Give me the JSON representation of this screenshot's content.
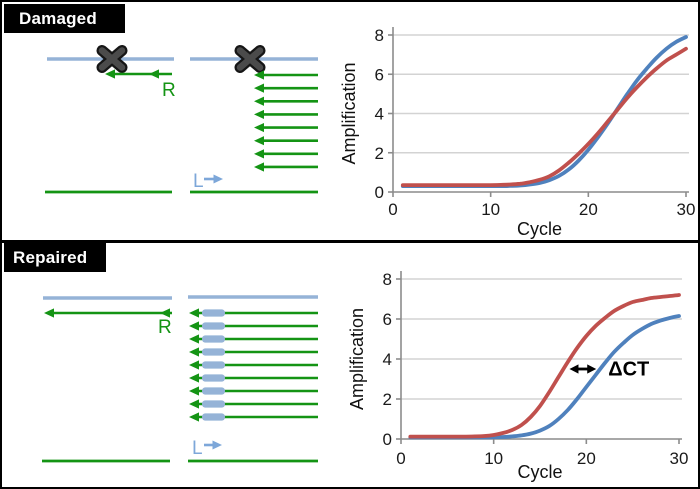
{
  "colors": {
    "series_red": "#C0504D",
    "series_blue": "#4F81BD",
    "primer_green": "#149414",
    "template_blue": "#95B3D7",
    "label_blue": "#7DA7D9",
    "damage_gray_outer": "#161616",
    "damage_gray_inner": "#4B4B4B",
    "axis_gray": "#8C8C8C",
    "grid_gray": "#D3D3D3",
    "text_dark": "#1A1A1A",
    "annotation_black": "#000000",
    "panel_label_bg": "#000000",
    "panel_label_fg": "#FFFFFF"
  },
  "panels": [
    {
      "title": "Damaged",
      "reverse_primer_label": "R",
      "forward_primer_label": "L",
      "left_diagram": {
        "damage_mark": true,
        "extension_products": 1,
        "repair_patches": false
      },
      "right_diagram": {
        "damage_mark": true,
        "extension_products": 8,
        "repair_patches": false
      }
    },
    {
      "title": "Repaired",
      "reverse_primer_label": "R",
      "forward_primer_label": "L",
      "left_diagram": {
        "damage_mark": false,
        "extension_products": 1,
        "repair_patches": false
      },
      "right_diagram": {
        "damage_mark": false,
        "extension_products": 9,
        "repair_patches": true
      }
    }
  ],
  "chart_data": [
    {
      "type": "line",
      "panel": "Damaged",
      "xlabel": "Cycle",
      "ylabel": "Amplification",
      "x_ticks": [
        0,
        10,
        20,
        30
      ],
      "y_ticks": [
        0,
        2,
        4,
        6,
        8
      ],
      "xlim": [
        0,
        30
      ],
      "ylim": [
        0,
        8
      ],
      "grid": true,
      "legend": "none",
      "x": [
        1,
        2,
        3,
        4,
        5,
        6,
        7,
        8,
        9,
        10,
        11,
        12,
        13,
        14,
        15,
        16,
        17,
        18,
        19,
        20,
        21,
        22,
        23,
        24,
        25,
        26,
        27,
        28,
        29,
        30
      ],
      "series": [
        {
          "name": "blue",
          "color": "#4F81BD",
          "values": [
            0.3,
            0.3,
            0.3,
            0.3,
            0.3,
            0.3,
            0.3,
            0.3,
            0.3,
            0.3,
            0.3,
            0.31,
            0.33,
            0.38,
            0.46,
            0.6,
            0.82,
            1.15,
            1.6,
            2.15,
            2.8,
            3.5,
            4.25,
            5.0,
            5.7,
            6.3,
            6.85,
            7.3,
            7.65,
            7.9
          ]
        },
        {
          "name": "red",
          "color": "#C0504D",
          "values": [
            0.35,
            0.35,
            0.35,
            0.35,
            0.35,
            0.35,
            0.35,
            0.35,
            0.35,
            0.35,
            0.36,
            0.38,
            0.42,
            0.5,
            0.62,
            0.8,
            1.1,
            1.5,
            1.95,
            2.45,
            3.0,
            3.6,
            4.2,
            4.8,
            5.35,
            5.85,
            6.3,
            6.7,
            7.0,
            7.3
          ]
        }
      ]
    },
    {
      "type": "line",
      "panel": "Repaired",
      "xlabel": "Cycle",
      "ylabel": "Amplification",
      "x_ticks": [
        0,
        10,
        20,
        30
      ],
      "y_ticks": [
        0,
        2,
        4,
        6,
        8
      ],
      "xlim": [
        0,
        30
      ],
      "ylim": [
        0,
        8
      ],
      "grid": true,
      "legend": "none",
      "x": [
        1,
        2,
        3,
        4,
        5,
        6,
        7,
        8,
        9,
        10,
        11,
        12,
        13,
        14,
        15,
        16,
        17,
        18,
        19,
        20,
        21,
        22,
        23,
        24,
        25,
        26,
        27,
        28,
        29,
        30
      ],
      "series": [
        {
          "name": "blue",
          "color": "#4F81BD",
          "values": [
            0.08,
            0.08,
            0.08,
            0.08,
            0.08,
            0.08,
            0.08,
            0.08,
            0.08,
            0.09,
            0.1,
            0.13,
            0.18,
            0.27,
            0.42,
            0.65,
            1.0,
            1.45,
            2.0,
            2.6,
            3.2,
            3.8,
            4.35,
            4.8,
            5.2,
            5.5,
            5.75,
            5.92,
            6.05,
            6.15
          ]
        },
        {
          "name": "red",
          "color": "#C0504D",
          "values": [
            0.12,
            0.12,
            0.12,
            0.12,
            0.12,
            0.12,
            0.12,
            0.13,
            0.15,
            0.2,
            0.3,
            0.45,
            0.7,
            1.1,
            1.65,
            2.35,
            3.1,
            3.85,
            4.55,
            5.15,
            5.65,
            6.05,
            6.4,
            6.65,
            6.85,
            6.95,
            7.05,
            7.1,
            7.15,
            7.2
          ]
        }
      ],
      "annotation": {
        "text": "ΔCT",
        "y_value": 3.5
      }
    }
  ]
}
